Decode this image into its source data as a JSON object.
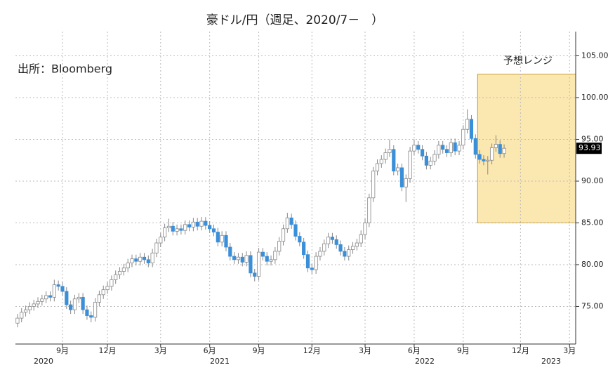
{
  "chart_data": {
    "type": "candlestick",
    "title": "豪ドル/円（週足、2020/7－　）",
    "source": "出所：Bloomberg",
    "categories": [
      null,
      null,
      null,
      null,
      null,
      null,
      null,
      null,
      null,
      null,
      null,
      "9月",
      null,
      null,
      null,
      null,
      null,
      null,
      null,
      null,
      null,
      null,
      "12月",
      null,
      null,
      null,
      null,
      null,
      null,
      null,
      null,
      null,
      null,
      null,
      null,
      "3月",
      null,
      null,
      null,
      null,
      null,
      null,
      null,
      null,
      null,
      null,
      null,
      "6月",
      null,
      null,
      null,
      null,
      null,
      null,
      null,
      null,
      null,
      null,
      null,
      "9月",
      null,
      null,
      null,
      null,
      null,
      null,
      null,
      null,
      null,
      null,
      null,
      null,
      "12月",
      null,
      null,
      null,
      null,
      null,
      null,
      null,
      null,
      null,
      null,
      null,
      null,
      "3月",
      null,
      null,
      null,
      null,
      null,
      null,
      null,
      null,
      null,
      null,
      null,
      "6月",
      null,
      null,
      null,
      null,
      null,
      null,
      null,
      null,
      null,
      null,
      null,
      "9月",
      null,
      null,
      null,
      null,
      null,
      null,
      null,
      null,
      null,
      null,
      null,
      null,
      null,
      "12月",
      null,
      null,
      null,
      null,
      null,
      null,
      null,
      null,
      null,
      null,
      null,
      "3月",
      null
    ],
    "years": [
      "2020",
      "2021",
      "2022",
      "2023"
    ],
    "open": [
      73.0,
      73.6,
      74.3,
      74.6,
      75.0,
      75.3,
      75.6,
      75.9,
      76.3,
      76.1,
      77.6,
      77.4,
      76.8,
      75.2,
      74.6,
      75.9,
      76.1,
      74.6,
      73.9,
      73.7,
      75.5,
      76.4,
      77.0,
      77.4,
      78.2,
      78.8,
      79.2,
      79.6,
      80.2,
      80.7,
      80.4,
      80.9,
      80.6,
      80.2,
      81.4,
      82.6,
      83.3,
      84.4,
      84.6,
      84.0,
      84.3,
      84.1,
      84.8,
      84.5,
      85.1,
      84.6,
      85.2,
      84.7,
      84.3,
      83.9,
      82.7,
      83.5,
      82.1,
      81.0,
      80.6,
      80.9,
      80.3,
      81.1,
      79.0,
      78.6,
      81.5,
      81.0,
      80.4,
      80.6,
      81.6,
      82.8,
      84.3,
      85.6,
      84.8,
      83.4,
      82.7,
      81.2,
      79.6,
      79.4,
      81.0,
      81.6,
      82.5,
      83.3,
      83.0,
      82.4,
      81.6,
      81.0,
      81.8,
      82.2,
      82.6,
      83.6,
      85.0,
      88.0,
      91.2,
      92.1,
      92.6,
      93.4,
      93.8,
      91.2,
      91.6,
      89.3,
      90.3,
      93.6,
      94.3,
      93.8,
      93.0,
      91.9,
      92.4,
      93.2,
      94.3,
      93.8,
      93.4,
      94.6,
      93.6,
      94.3,
      96.2,
      97.4,
      95.1,
      93.2,
      92.6,
      92.4,
      92.5,
      94.0,
      94.4,
      93.3,
      null,
      null,
      null,
      null,
      null,
      null,
      null,
      null,
      null,
      null,
      null,
      null,
      null,
      null,
      null,
      null,
      null
    ],
    "high": [
      74.1,
      74.8,
      75.1,
      75.5,
      75.8,
      76.1,
      76.4,
      76.8,
      76.8,
      78.2,
      78.1,
      77.9,
      77.3,
      75.7,
      76.4,
      76.6,
      76.6,
      75.1,
      74.4,
      76.0,
      76.9,
      77.5,
      77.9,
      78.7,
      79.3,
      79.7,
      80.1,
      80.7,
      81.2,
      81.2,
      81.4,
      81.4,
      81.1,
      81.9,
      83.1,
      83.8,
      84.9,
      85.5,
      85.1,
      84.8,
      84.8,
      85.3,
      85.3,
      85.6,
      85.6,
      85.7,
      85.7,
      85.2,
      84.8,
      84.4,
      84.0,
      84.0,
      82.6,
      81.5,
      81.4,
      81.4,
      81.6,
      81.6,
      79.5,
      82.0,
      82.0,
      81.5,
      81.1,
      82.1,
      83.3,
      84.8,
      86.2,
      86.1,
      85.3,
      83.9,
      83.2,
      81.7,
      80.1,
      81.5,
      82.1,
      83.0,
      83.8,
      83.8,
      83.5,
      82.9,
      82.1,
      82.3,
      82.7,
      83.1,
      84.1,
      85.5,
      88.5,
      91.7,
      92.6,
      93.1,
      93.9,
      95.0,
      94.3,
      92.1,
      92.1,
      90.8,
      94.1,
      95.0,
      94.8,
      94.3,
      93.5,
      92.9,
      93.7,
      94.8,
      94.8,
      94.3,
      95.1,
      95.1,
      94.8,
      96.7,
      98.6,
      97.9,
      95.6,
      93.7,
      93.1,
      93.0,
      94.5,
      95.5,
      94.9,
      94.4,
      null,
      null,
      null,
      null,
      null,
      null,
      null,
      null,
      null,
      null,
      null,
      null,
      null,
      null,
      null,
      null,
      null
    ],
    "low": [
      72.5,
      73.1,
      73.8,
      74.1,
      74.5,
      74.8,
      75.1,
      75.4,
      75.6,
      75.6,
      76.9,
      76.3,
      74.7,
      74.1,
      74.1,
      75.4,
      74.1,
      73.4,
      73.1,
      73.2,
      75.0,
      75.9,
      76.5,
      76.9,
      77.7,
      78.3,
      78.7,
      79.1,
      79.7,
      79.9,
      79.9,
      80.1,
      79.7,
      79.7,
      80.9,
      82.1,
      82.8,
      83.9,
      83.5,
      83.5,
      83.6,
      83.6,
      84.0,
      84.0,
      84.1,
      84.1,
      84.2,
      83.8,
      83.4,
      82.2,
      82.2,
      81.6,
      80.5,
      80.1,
      80.1,
      79.8,
      79.8,
      78.5,
      78.0,
      78.1,
      80.5,
      79.9,
      79.9,
      80.1,
      81.1,
      82.3,
      83.8,
      84.3,
      82.9,
      82.2,
      80.7,
      79.1,
      78.9,
      78.9,
      80.5,
      81.1,
      82.0,
      82.5,
      81.9,
      81.1,
      80.5,
      80.5,
      81.3,
      81.7,
      82.1,
      83.1,
      84.5,
      87.5,
      90.7,
      91.6,
      92.1,
      92.9,
      90.7,
      90.7,
      88.8,
      87.5,
      89.8,
      93.1,
      93.3,
      92.5,
      91.4,
      91.4,
      91.9,
      92.7,
      93.3,
      92.9,
      92.9,
      93.1,
      93.1,
      93.8,
      95.7,
      94.6,
      92.7,
      92.1,
      91.9,
      90.8,
      92.0,
      93.5,
      92.8,
      92.8,
      null,
      null,
      null,
      null,
      null,
      null,
      null,
      null,
      null,
      null,
      null,
      null,
      null,
      null,
      null,
      null,
      null
    ],
    "close": [
      73.6,
      74.3,
      74.6,
      75.0,
      75.3,
      75.6,
      75.9,
      76.3,
      76.1,
      77.6,
      77.4,
      76.8,
      75.2,
      74.6,
      75.9,
      76.1,
      74.6,
      73.9,
      73.7,
      75.5,
      76.4,
      77.0,
      77.4,
      78.2,
      78.8,
      79.2,
      79.6,
      80.2,
      80.7,
      80.4,
      80.9,
      80.6,
      80.2,
      81.4,
      82.6,
      83.3,
      84.4,
      84.6,
      84.0,
      84.3,
      84.1,
      84.8,
      84.5,
      85.1,
      84.6,
      85.2,
      84.7,
      84.3,
      83.9,
      82.7,
      83.5,
      82.1,
      81.0,
      80.6,
      80.9,
      80.3,
      81.1,
      79.0,
      78.6,
      81.5,
      81.0,
      80.4,
      80.6,
      81.6,
      82.8,
      84.3,
      85.6,
      84.8,
      83.4,
      82.7,
      81.2,
      79.6,
      79.4,
      81.0,
      81.6,
      82.5,
      83.3,
      83.0,
      82.4,
      81.6,
      81.0,
      81.8,
      82.2,
      82.6,
      83.6,
      85.0,
      88.0,
      91.2,
      92.1,
      92.6,
      93.4,
      93.8,
      91.2,
      91.6,
      89.3,
      90.3,
      93.6,
      94.3,
      93.8,
      93.0,
      91.9,
      92.4,
      93.2,
      94.3,
      93.8,
      93.4,
      94.6,
      93.6,
      94.3,
      96.2,
      97.4,
      95.1,
      93.2,
      92.6,
      92.4,
      92.5,
      94.0,
      94.4,
      93.3,
      93.93,
      null,
      null,
      null,
      null,
      null,
      null,
      null,
      null,
      null,
      null,
      null,
      null,
      null,
      null,
      null,
      null,
      null
    ],
    "up_color": "#ffffff",
    "down_color": "#3a8fd9",
    "forecast_range": {
      "label": "予想レンジ",
      "low": 85,
      "high": 102.8,
      "color": "#fbe7b0"
    },
    "ylim": [
      70.5,
      107.9
    ],
    "yticks": [
      {
        "value": 75,
        "label": "75.00"
      },
      {
        "value": 80,
        "label": "80.00"
      },
      {
        "value": 85,
        "label": "85.00"
      },
      {
        "value": 90,
        "label": "90.00"
      },
      {
        "value": 95,
        "label": "95.00"
      },
      {
        "value": 100,
        "label": "100.00"
      },
      {
        "value": 105,
        "label": "105.00"
      }
    ],
    "grid": true
  }
}
